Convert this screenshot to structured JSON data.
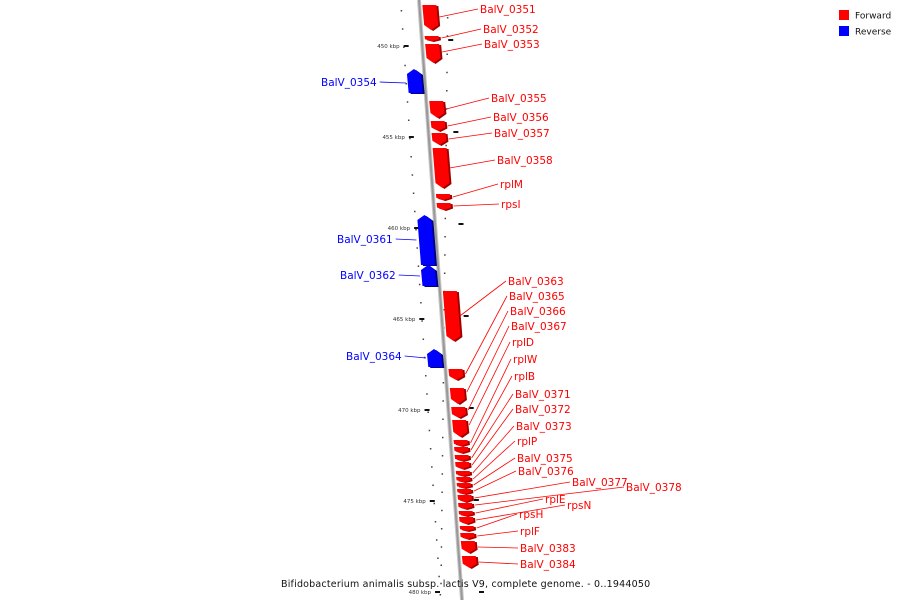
{
  "colors": {
    "forward": "#ff0000",
    "reverse": "#0000ff",
    "backbone": "#999999"
  },
  "legend": [
    {
      "label": "Forward",
      "strand": "forward"
    },
    {
      "label": "Reverse",
      "strand": "reverse"
    }
  ],
  "caption": "Bifidobacterium animalis subsp. lactis V9, complete genome. - 0..1944050",
  "scale_labels": [
    "450 kbp",
    "455 kbp",
    "460 kbp",
    "465 kbp",
    "470 kbp",
    "475 kbp",
    "480 kbp"
  ],
  "genes": [
    {
      "label": "BalV_0351",
      "strand": "forward"
    },
    {
      "label": "BalV_0352",
      "strand": "forward"
    },
    {
      "label": "BalV_0353",
      "strand": "forward"
    },
    {
      "label": "BalV_0354",
      "strand": "reverse"
    },
    {
      "label": "BalV_0355",
      "strand": "forward"
    },
    {
      "label": "BalV_0356",
      "strand": "forward"
    },
    {
      "label": "BalV_0357",
      "strand": "forward"
    },
    {
      "label": "BalV_0358",
      "strand": "forward"
    },
    {
      "label": "rplM",
      "strand": "forward"
    },
    {
      "label": "rpsI",
      "strand": "forward"
    },
    {
      "label": "BalV_0361",
      "strand": "reverse"
    },
    {
      "label": "BalV_0362",
      "strand": "reverse"
    },
    {
      "label": "BalV_0363",
      "strand": "forward"
    },
    {
      "label": "BalV_0365",
      "strand": "forward"
    },
    {
      "label": "BalV_0366",
      "strand": "forward"
    },
    {
      "label": "BalV_0367",
      "strand": "forward"
    },
    {
      "label": "rplD",
      "strand": "forward"
    },
    {
      "label": "rplW",
      "strand": "forward"
    },
    {
      "label": "rplB",
      "strand": "forward"
    },
    {
      "label": "BalV_0364",
      "strand": "reverse"
    },
    {
      "label": "BalV_0371",
      "strand": "forward"
    },
    {
      "label": "BalV_0372",
      "strand": "forward"
    },
    {
      "label": "BalV_0373",
      "strand": "forward"
    },
    {
      "label": "rplP",
      "strand": "forward"
    },
    {
      "label": "BalV_0375",
      "strand": "forward"
    },
    {
      "label": "BalV_0376",
      "strand": "forward"
    },
    {
      "label": "BalV_0377",
      "strand": "forward"
    },
    {
      "label": "BalV_0378",
      "strand": "forward"
    },
    {
      "label": "rplE",
      "strand": "forward"
    },
    {
      "label": "rpsN",
      "strand": "forward"
    },
    {
      "label": "rpsH",
      "strand": "forward"
    },
    {
      "label": "rplF",
      "strand": "forward"
    },
    {
      "label": "BalV_0383",
      "strand": "forward"
    },
    {
      "label": "BalV_0384",
      "strand": "forward"
    }
  ]
}
